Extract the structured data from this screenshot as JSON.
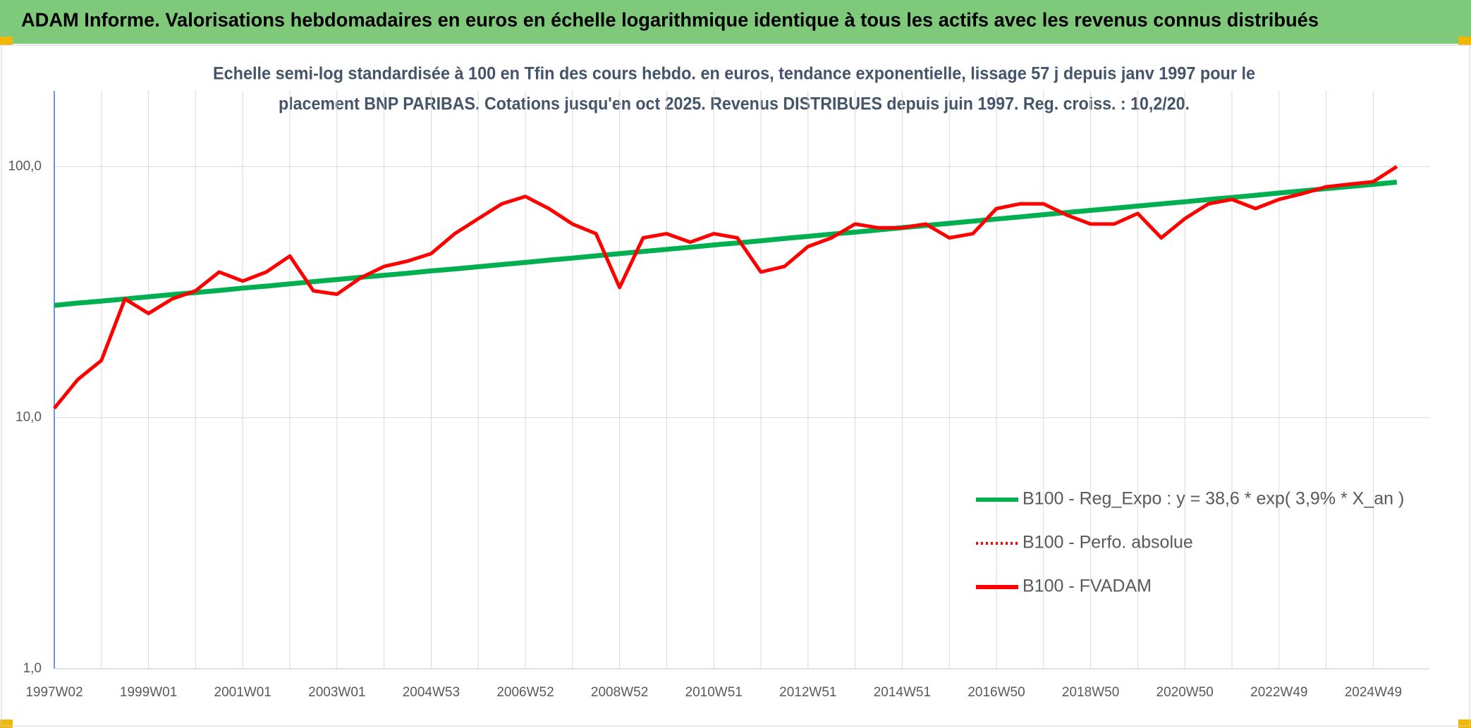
{
  "chart_data": {
    "type": "line",
    "title": "ADAM Informe. Valorisations hebdomadaires en euros en échelle logarithmique identique à tous les actifs avec les revenus connus distribués",
    "subtitle": [
      "Echelle semi-log standardisée à 100 en Tfin des cours hebdo. en euros, tendance exponentielle, lissage 57 j depuis janv 1997 pour le",
      "placement BNP PARIBAS. Cotations jusqu'en oct 2025. Revenus DISTRIBUES depuis juin 1997. Reg. croiss. : 10,2/20."
    ],
    "categories": [
      "1997W02",
      null,
      null,
      null,
      "1999W01",
      null,
      null,
      null,
      "2001W01",
      null,
      null,
      null,
      "2003W01",
      null,
      null,
      null,
      "2004W53",
      null,
      null,
      null,
      "2006W52",
      null,
      null,
      null,
      "2008W52",
      null,
      null,
      null,
      "2010W51",
      null,
      null,
      null,
      "2012W51",
      null,
      null,
      null,
      "2014W51",
      null,
      null,
      null,
      "2016W50",
      null,
      null,
      null,
      "2018W50",
      null,
      null,
      null,
      "2020W50",
      null,
      null,
      null,
      "2022W49",
      null,
      null,
      null,
      "2024W49",
      null
    ],
    "log_scale": true,
    "ylim": [
      1,
      200
    ],
    "yticks": [
      {
        "value": 1,
        "label": "1,0"
      },
      {
        "value": 10,
        "label": "10,0"
      },
      {
        "value": 100,
        "label": "100,0"
      }
    ],
    "grid": true,
    "legend": "lower right",
    "series": [
      {
        "name": "B100 - Reg_Expo : y = 38,6 * exp( 3,9% *  X_an )",
        "color": "#00b050",
        "style": "solid",
        "values": [
          28.0,
          28.6,
          29.1,
          29.7,
          30.3,
          30.9,
          31.5,
          32.1,
          32.8,
          33.4,
          34.1,
          34.8,
          35.5,
          36.2,
          36.9,
          37.6,
          38.4,
          39.1,
          39.9,
          40.7,
          41.5,
          42.4,
          43.2,
          44.1,
          45.0,
          45.9,
          46.8,
          47.7,
          48.7,
          49.6,
          50.6,
          51.7,
          52.7,
          53.8,
          54.8,
          55.9,
          57.1,
          58.2,
          59.4,
          60.6,
          61.8,
          63.0,
          64.3,
          65.6,
          66.9,
          68.2,
          69.6,
          71.0,
          72.4,
          73.9,
          75.3,
          76.8,
          78.4,
          80.0,
          81.6,
          83.2,
          84.9,
          86.6
        ]
      },
      {
        "name": "B100 - Perfo. absolue",
        "color": "#ff0000",
        "style": "dotted",
        "values": [
          10.9,
          14.2,
          16.9,
          29.7,
          26,
          29.7,
          32,
          38,
          35,
          38,
          44,
          32,
          31,
          36,
          40,
          42,
          45,
          54,
          62,
          71,
          76,
          68,
          59,
          54,
          33,
          52,
          54,
          50,
          54,
          52,
          38,
          40,
          48,
          52,
          59,
          57,
          57,
          59,
          52,
          54,
          68,
          71,
          71,
          64,
          59,
          59,
          65,
          52,
          62,
          71,
          74,
          68,
          74,
          78,
          83,
          85,
          87,
          100
        ]
      },
      {
        "name": "B100 - FVADAM",
        "color": "#ff0000",
        "style": "solid",
        "values": [
          10.9,
          14.2,
          16.9,
          29.7,
          26,
          29.7,
          32,
          38,
          35,
          38,
          44,
          32,
          31,
          36,
          40,
          42,
          45,
          54,
          62,
          71,
          76,
          68,
          59,
          54,
          33,
          52,
          54,
          50,
          54,
          52,
          38,
          40,
          48,
          52,
          59,
          57,
          57,
          59,
          52,
          54,
          68,
          71,
          71,
          64,
          59,
          59,
          65,
          52,
          62,
          71,
          74,
          68,
          74,
          78,
          83,
          85,
          87,
          100
        ]
      }
    ]
  }
}
